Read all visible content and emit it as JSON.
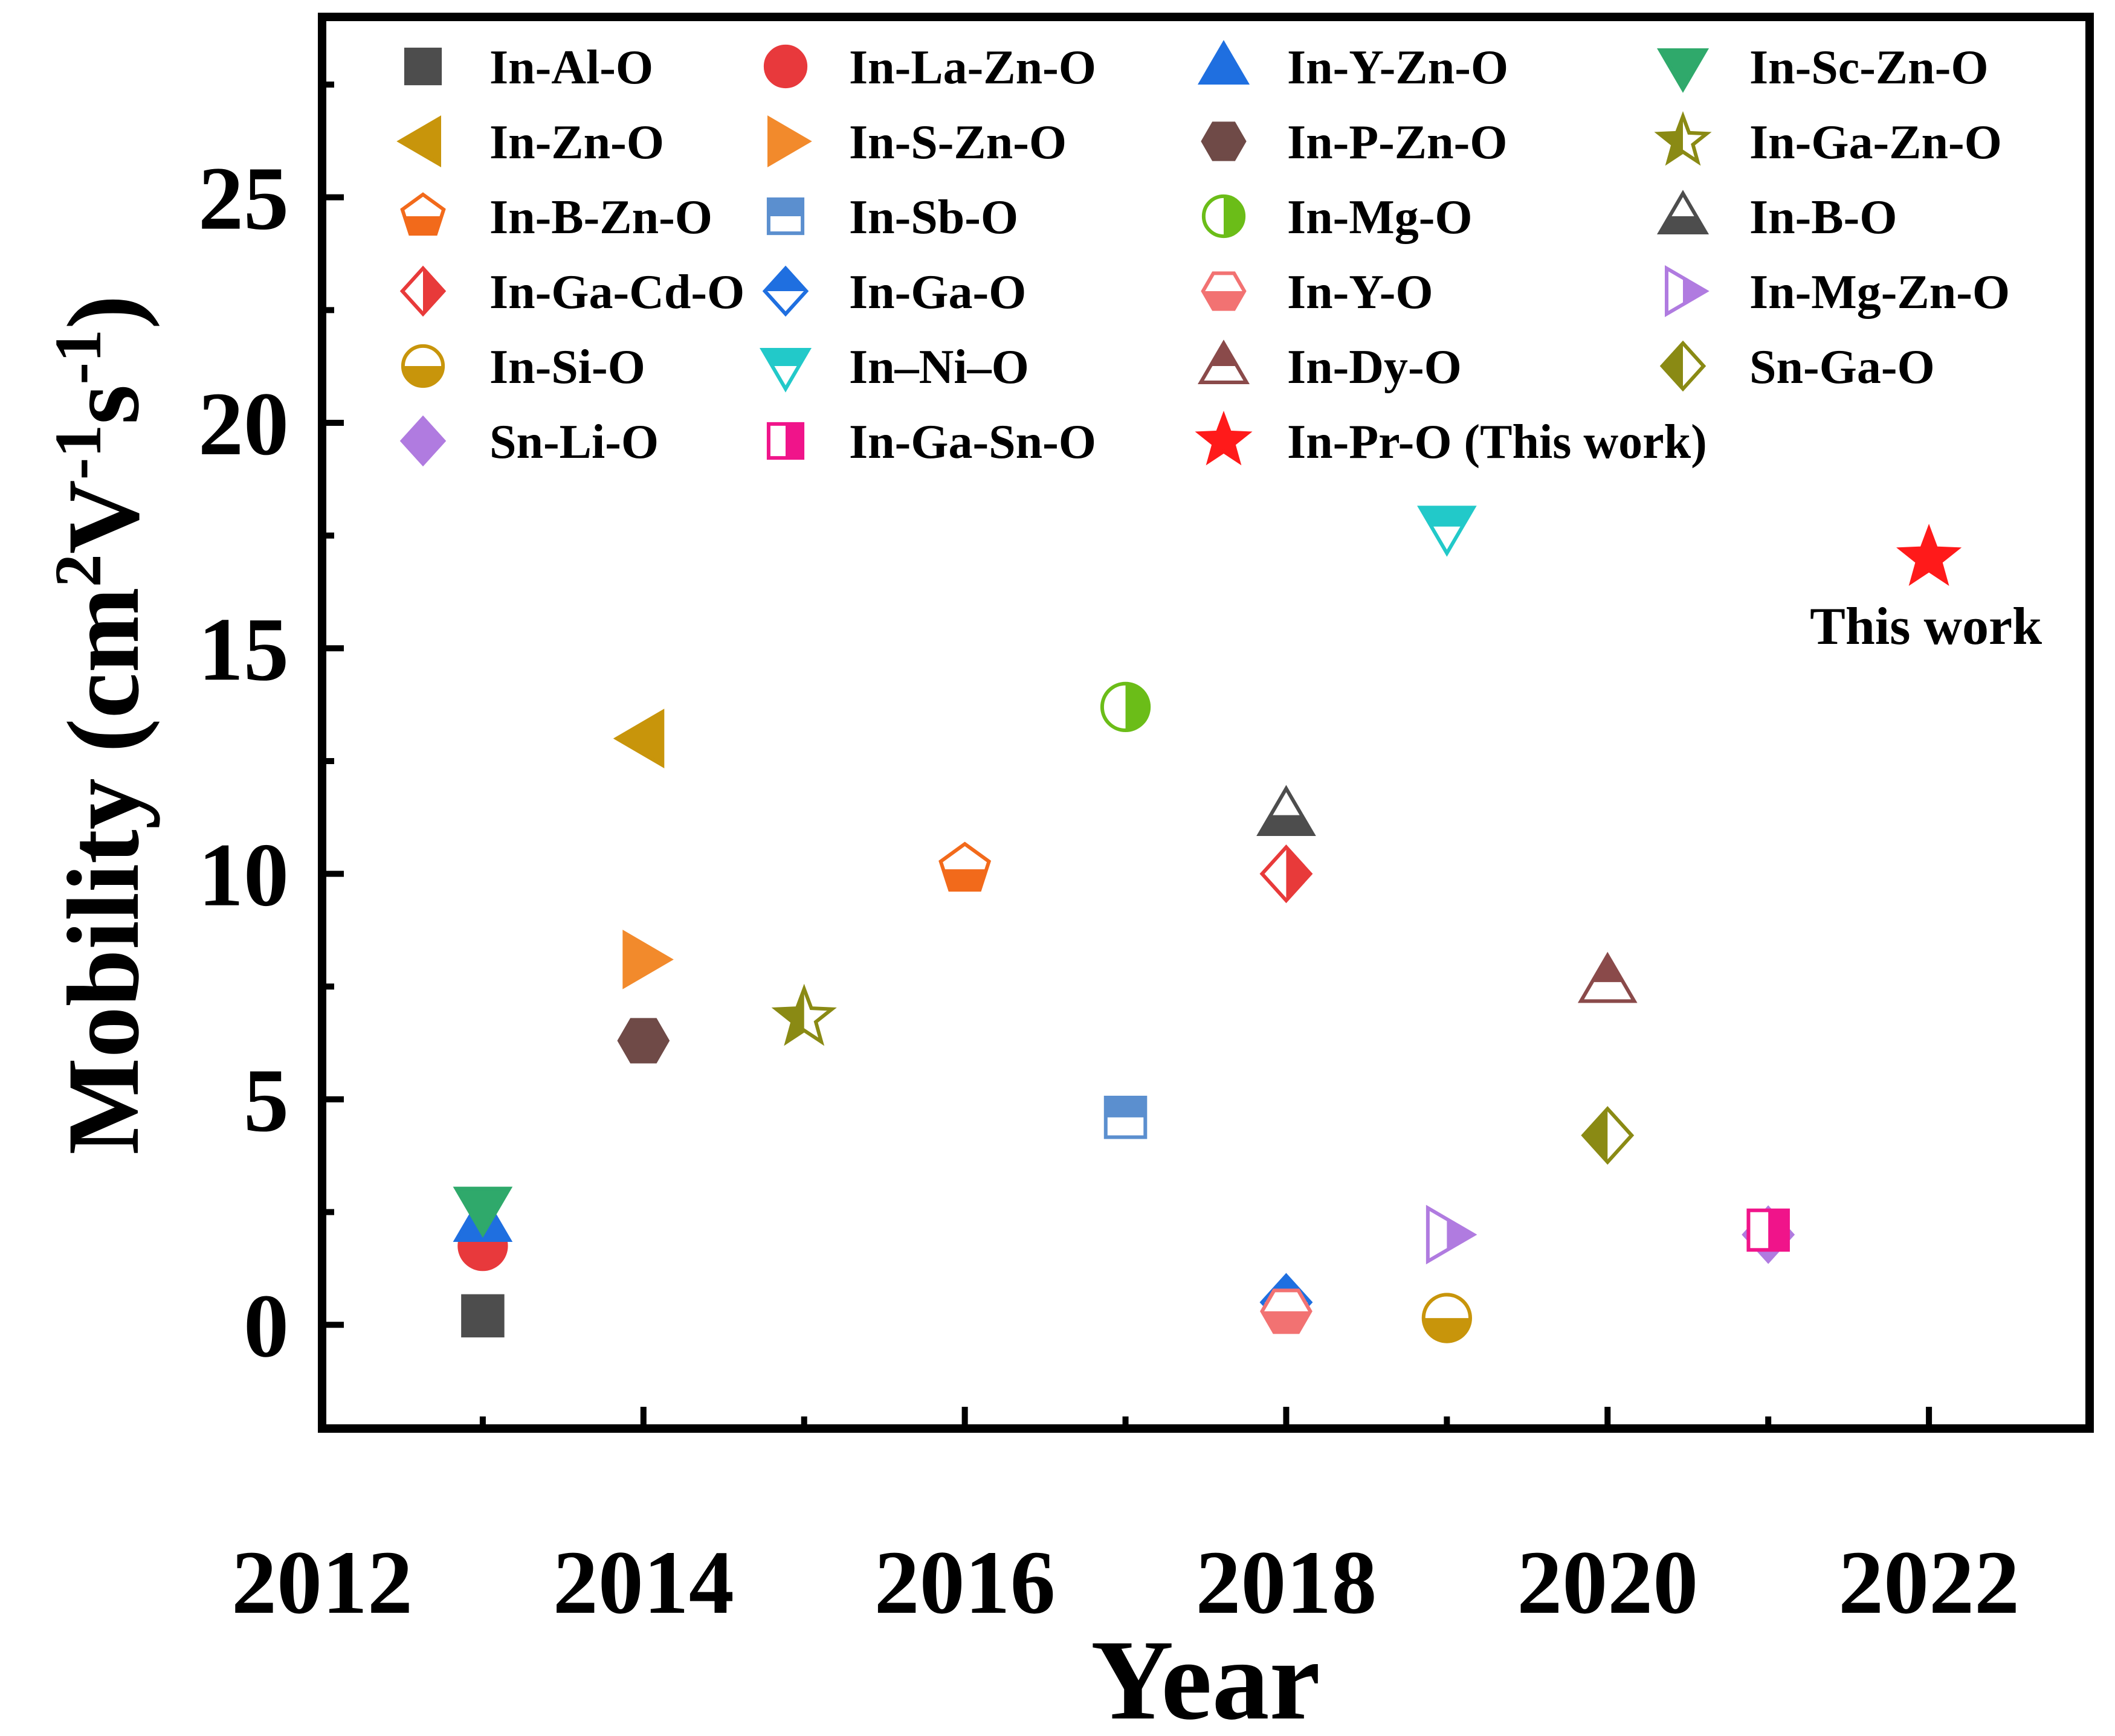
{
  "chart_data": {
    "type": "scatter",
    "xlabel": "Year",
    "ylabel": {
      "main": "Mobility (cm",
      "sup1": "2",
      "mid1": "V",
      "sup2": "-1",
      "mid2": "s",
      "sup3": "-1",
      "end": ")"
    },
    "xlim": [
      2012,
      2023
    ],
    "ylim": [
      -2.3,
      29
    ],
    "x_ticks": [
      2012,
      2014,
      2016,
      2018,
      2020,
      2022
    ],
    "y_ticks": [
      0,
      5,
      10,
      15,
      20,
      25
    ],
    "legend_location": "top, 4 columns",
    "annotation": {
      "text": "This work",
      "x": 2022,
      "y": 15.5
    },
    "series": [
      {
        "name": "In-Al-O",
        "marker": "square",
        "fill": "full",
        "color": "#4d4d4d",
        "x": 2013,
        "y": 0.2
      },
      {
        "name": "In-La-Zn-O",
        "marker": "circle",
        "fill": "full",
        "color": "#e8393c",
        "x": 2013,
        "y": 1.75
      },
      {
        "name": "In-Y-Zn-O",
        "marker": "triangle-up",
        "fill": "full",
        "color": "#1f6fe0",
        "x": 2013,
        "y": 2.3
      },
      {
        "name": "In-Sc-Zn-O",
        "marker": "triangle-down",
        "fill": "full",
        "color": "#2fa96b",
        "x": 2013,
        "y": 2.6
      },
      {
        "name": "In-Zn-O",
        "marker": "triangle-left",
        "fill": "full",
        "color": "#c8950b",
        "x": 2014,
        "y": 13.0
      },
      {
        "name": "In-S-Zn-O",
        "marker": "triangle-right",
        "fill": "full",
        "color": "#f28a2c",
        "x": 2014,
        "y": 8.1
      },
      {
        "name": "In-P-Zn-O",
        "marker": "hexagon",
        "fill": "full",
        "color": "#6f4a47",
        "x": 2014,
        "y": 6.3
      },
      {
        "name": "In-Ga-Zn-O",
        "marker": "star",
        "fill": "left",
        "color": "#8a8a14",
        "x": 2015,
        "y": 6.8
      },
      {
        "name": "In-B-Zn-O",
        "marker": "pentagon",
        "fill": "bottom",
        "color": "#f26a1b",
        "x": 2016,
        "y": 10.1
      },
      {
        "name": "In-Sb-O",
        "marker": "square",
        "fill": "top",
        "color": "#5b8fcf",
        "x": 2017,
        "y": 4.6
      },
      {
        "name": "In-Mg-O",
        "marker": "circle",
        "fill": "right",
        "color": "#6bbd18",
        "x": 2017,
        "y": 13.7
      },
      {
        "name": "In-B-O",
        "marker": "triangle-up",
        "fill": "bottom",
        "color": "#4d4d4d",
        "x": 2018,
        "y": 11.3
      },
      {
        "name": "In-Ga-Cd-O",
        "marker": "diamond",
        "fill": "right",
        "color": "#e83a3a",
        "x": 2018,
        "y": 10.0
      },
      {
        "name": "In-Ga-O",
        "marker": "diamond",
        "fill": "top",
        "color": "#1f6fe0",
        "x": 2018,
        "y": 0.5
      },
      {
        "name": "In-Y-O",
        "marker": "hexagon",
        "fill": "bottom",
        "color": "#f27272",
        "x": 2018,
        "y": 0.3
      },
      {
        "name": "In-Mg-Zn-O",
        "marker": "triangle-right",
        "fill": "right",
        "color": "#b07be0",
        "x": 2019,
        "y": 2.0
      },
      {
        "name": "In-Si-O",
        "marker": "circle",
        "fill": "bottom",
        "color": "#c8950b",
        "x": 2019,
        "y": 0.15
      },
      {
        "name": "In–Ni–O",
        "marker": "triangle-down",
        "fill": "top",
        "color": "#22c9c9",
        "x": 2019,
        "y": 17.7
      },
      {
        "name": "In-Dy-O",
        "marker": "triangle-up",
        "fill": "top",
        "color": "#8a4a4a",
        "x": 2020,
        "y": 7.6
      },
      {
        "name": "Sn-Ga-O",
        "marker": "diamond",
        "fill": "left",
        "color": "#8a8a14",
        "x": 2020,
        "y": 4.2
      },
      {
        "name": "Sn-Li-O",
        "marker": "diamond",
        "fill": "full",
        "color": "#b07be0",
        "x": 2021,
        "y": 2.0
      },
      {
        "name": "In-Ga-Sn-O",
        "marker": "square",
        "fill": "right",
        "color": "#f0148a",
        "x": 2021,
        "y": 2.1
      },
      {
        "name": "In-Pr-O (This work)",
        "marker": "star",
        "fill": "full",
        "color": "#ff1a1a",
        "x": 2022,
        "y": 17.0
      }
    ]
  }
}
